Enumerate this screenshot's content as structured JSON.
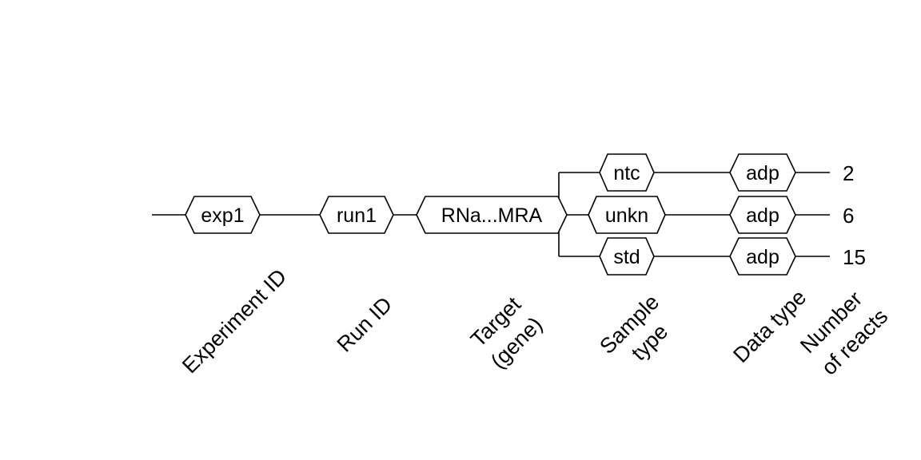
{
  "diagram": {
    "nodes": {
      "experiment": "exp1",
      "run": "run1",
      "target": "RNa...MRA",
      "sample_ntc": "ntc",
      "sample_unkn": "unkn",
      "sample_std": "std",
      "datatype_1": "adp",
      "datatype_2": "adp",
      "datatype_3": "adp"
    },
    "counts": {
      "ntc": "2",
      "unkn": "6",
      "std": "15"
    },
    "column_labels": {
      "experiment_id": "Experiment ID",
      "run_id": "Run ID",
      "target_line1": "Target",
      "target_line2": "(gene)",
      "sample_type_line1": "Sample",
      "sample_type_line2": "type",
      "data_type": "Data type",
      "num_reacts_line1": "Number",
      "num_reacts_line2": "of reacts"
    }
  }
}
